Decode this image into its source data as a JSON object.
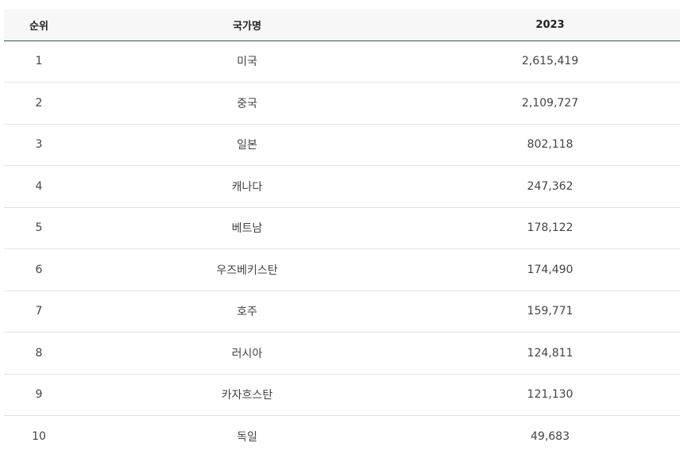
{
  "table": {
    "headers": [
      "순위",
      "국가명",
      "2023"
    ],
    "rows": [
      {
        "rank": "1",
        "country": "미국",
        "value": "2,615,419"
      },
      {
        "rank": "2",
        "country": "중국",
        "value": "2,109,727"
      },
      {
        "rank": "3",
        "country": "일본",
        "value": "802,118"
      },
      {
        "rank": "4",
        "country": "캐나다",
        "value": "247,362"
      },
      {
        "rank": "5",
        "country": "베트남",
        "value": "178,122"
      },
      {
        "rank": "6",
        "country": "우즈베키스탄",
        "value": "174,490"
      },
      {
        "rank": "7",
        "country": "호주",
        "value": "159,771"
      },
      {
        "rank": "8",
        "country": "러시아",
        "value": "124,811"
      },
      {
        "rank": "9",
        "country": "카자흐스탄",
        "value": "121,130"
      },
      {
        "rank": "10",
        "country": "독일",
        "value": "49,683"
      }
    ]
  },
  "colors": {
    "header_bg": "#f7f7f7",
    "header_rule": "#2d5d4f",
    "row_rule": "#e2e2e2"
  }
}
